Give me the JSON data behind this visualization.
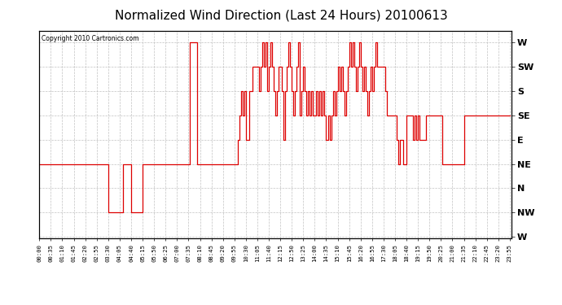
{
  "title": "Normalized Wind Direction (Last 24 Hours) 20100613",
  "copyright": "Copyright 2010 Cartronics.com",
  "title_fontsize": 11,
  "line_color": "#dd0000",
  "bg_color": "#ffffff",
  "plot_bg_color": "#ffffff",
  "grid_color": "#bbbbbb",
  "ytick_labels": [
    "W",
    "SW",
    "S",
    "SE",
    "E",
    "NE",
    "N",
    "NW",
    "W"
  ],
  "ytick_values": [
    8,
    7,
    6,
    5,
    4,
    3,
    2,
    1,
    0
  ],
  "ylim": [
    -0.05,
    8.5
  ],
  "times": [
    "00:00",
    "00:35",
    "01:10",
    "01:45",
    "02:20",
    "02:55",
    "03:30",
    "04:05",
    "04:15",
    "04:40",
    "04:50",
    "05:00",
    "05:15",
    "05:20",
    "05:25",
    "05:50",
    "06:00",
    "06:25",
    "06:50",
    "07:00",
    "07:05",
    "07:10",
    "07:20",
    "07:35",
    "07:40",
    "08:00",
    "08:05",
    "08:10",
    "08:15",
    "08:20",
    "08:30",
    "08:45",
    "09:00",
    "09:20",
    "09:30",
    "09:40",
    "09:50",
    "10:00",
    "10:05",
    "10:10",
    "10:15",
    "10:20",
    "10:25",
    "10:30",
    "10:40",
    "10:50",
    "11:00",
    "11:05",
    "11:10",
    "11:15",
    "11:20",
    "11:25",
    "11:30",
    "11:35",
    "11:40",
    "11:45",
    "11:50",
    "11:55",
    "12:00",
    "12:05",
    "12:10",
    "12:15",
    "12:20",
    "12:25",
    "12:30",
    "12:35",
    "12:40",
    "12:45",
    "12:50",
    "12:55",
    "13:00",
    "13:05",
    "13:10",
    "13:15",
    "13:20",
    "13:25",
    "13:30",
    "13:35",
    "13:40",
    "13:45",
    "13:50",
    "13:55",
    "14:00",
    "14:05",
    "14:10",
    "14:15",
    "14:20",
    "14:25",
    "14:30",
    "14:35",
    "14:40",
    "14:45",
    "14:50",
    "14:55",
    "15:00",
    "15:05",
    "15:10",
    "15:15",
    "15:20",
    "15:25",
    "15:30",
    "15:35",
    "15:40",
    "15:45",
    "15:50",
    "15:55",
    "16:00",
    "16:05",
    "16:10",
    "16:15",
    "16:20",
    "16:25",
    "16:30",
    "16:35",
    "16:40",
    "16:45",
    "16:50",
    "16:55",
    "17:00",
    "17:05",
    "17:10",
    "17:15",
    "17:20",
    "17:30",
    "17:35",
    "17:40",
    "17:45",
    "17:50",
    "18:00",
    "18:05",
    "18:10",
    "18:15",
    "18:20",
    "18:30",
    "18:40",
    "19:00",
    "19:05",
    "19:10",
    "19:15",
    "19:20",
    "19:25",
    "19:30",
    "19:35",
    "19:40",
    "19:45",
    "20:00",
    "20:05",
    "20:30",
    "21:00",
    "21:10",
    "21:30",
    "21:35",
    "22:10",
    "22:20",
    "22:45",
    "23:05",
    "23:20",
    "23:55"
  ],
  "values": [
    3,
    3,
    3,
    3,
    3,
    3,
    1,
    1,
    3,
    1,
    1,
    1,
    3,
    3,
    3,
    3,
    3,
    3,
    3,
    3,
    3,
    3,
    3,
    3,
    8,
    3,
    3,
    3,
    3,
    3,
    3,
    3,
    3,
    3,
    3,
    3,
    3,
    3,
    4,
    5,
    6,
    5,
    6,
    4,
    6,
    7,
    7,
    7,
    6,
    7,
    8,
    7,
    8,
    6,
    7,
    8,
    7,
    6,
    5,
    6,
    7,
    7,
    6,
    4,
    6,
    7,
    8,
    7,
    6,
    5,
    6,
    7,
    8,
    5,
    6,
    7,
    6,
    5,
    6,
    5,
    6,
    5,
    5,
    6,
    5,
    6,
    5,
    6,
    5,
    4,
    5,
    4,
    5,
    6,
    5,
    6,
    7,
    6,
    7,
    6,
    5,
    6,
    7,
    8,
    7,
    8,
    7,
    6,
    7,
    8,
    7,
    6,
    7,
    6,
    5,
    6,
    7,
    6,
    7,
    8,
    7,
    7,
    7,
    7,
    6,
    5,
    5,
    5,
    5,
    5,
    4,
    3,
    4,
    3,
    5,
    4,
    5,
    4,
    5,
    4,
    4,
    4,
    4,
    5,
    5,
    5,
    5,
    3,
    3,
    3,
    3,
    5,
    5,
    5,
    5,
    5,
    5,
    5
  ],
  "xtick_interval_min": 35,
  "xlim_min": 0,
  "xlim_max": 1440
}
